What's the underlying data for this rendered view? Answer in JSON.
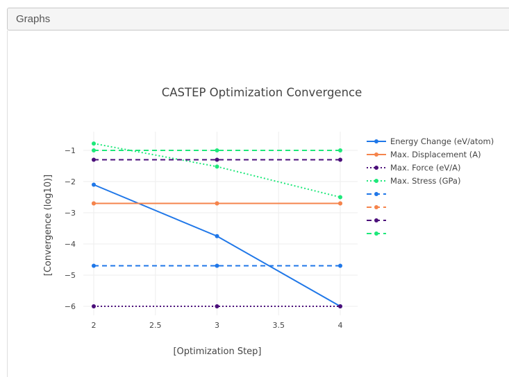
{
  "panel": {
    "title": "Graphs"
  },
  "chart_data": {
    "type": "line",
    "title": "CASTEP Optimization Convergence",
    "xlabel": "[Optimization Step]",
    "ylabel": "[Convergence (log10)]",
    "xlim": [
      2,
      4
    ],
    "ylim": [
      -6.1,
      -0.5
    ],
    "grid": true,
    "legend_position": "right",
    "x_ticks": [
      2,
      2.5,
      3,
      3.5,
      4
    ],
    "x_tick_labels": [
      "2",
      "2.5",
      "3",
      "3.5",
      "4"
    ],
    "y_ticks": [
      -1,
      -2,
      -3,
      -4,
      -5,
      -6
    ],
    "y_tick_labels": [
      "−1",
      "−2",
      "−3",
      "−4",
      "−5",
      "−6"
    ],
    "series": [
      {
        "name": "Energy Change (eV/atom)",
        "color": "#1f77e8",
        "dash": "solid",
        "x": [
          2,
          3,
          4
        ],
        "y": [
          -2.1,
          -3.75,
          -6.0
        ]
      },
      {
        "name": "Max. Displacement (A)",
        "color": "#f5844c",
        "dash": "solid",
        "x": [
          2,
          3,
          4
        ],
        "y": [
          -2.7,
          -2.7,
          -2.7
        ]
      },
      {
        "name": "Max. Force (eV/A)",
        "color": "#4b0f7a",
        "dash": "dot",
        "x": [
          2,
          3,
          4
        ],
        "y": [
          -6.0,
          -6.0,
          -6.0
        ]
      },
      {
        "name": "Max. Stress (GPa)",
        "color": "#1ee87a",
        "dash": "dot",
        "x": [
          2,
          3,
          4
        ],
        "y": [
          -0.78,
          -1.52,
          -2.5
        ]
      },
      {
        "name": "",
        "color": "#1f77e8",
        "dash": "dash",
        "x": [
          2,
          3,
          4
        ],
        "y": [
          -4.7,
          -4.7,
          -4.7
        ]
      },
      {
        "name": "",
        "color": "#f5844c",
        "dash": "dash",
        "x": [
          2,
          3,
          4
        ],
        "y": [
          -2.7,
          -2.7,
          -2.7
        ]
      },
      {
        "name": "",
        "color": "#4b0f7a",
        "dash": "dash",
        "x": [
          2,
          3,
          4
        ],
        "y": [
          -1.3,
          -1.3,
          -1.3
        ]
      },
      {
        "name": "",
        "color": "#1ee87a",
        "dash": "dash",
        "x": [
          2,
          3,
          4
        ],
        "y": [
          -1.0,
          -1.0,
          -1.0
        ]
      }
    ]
  }
}
